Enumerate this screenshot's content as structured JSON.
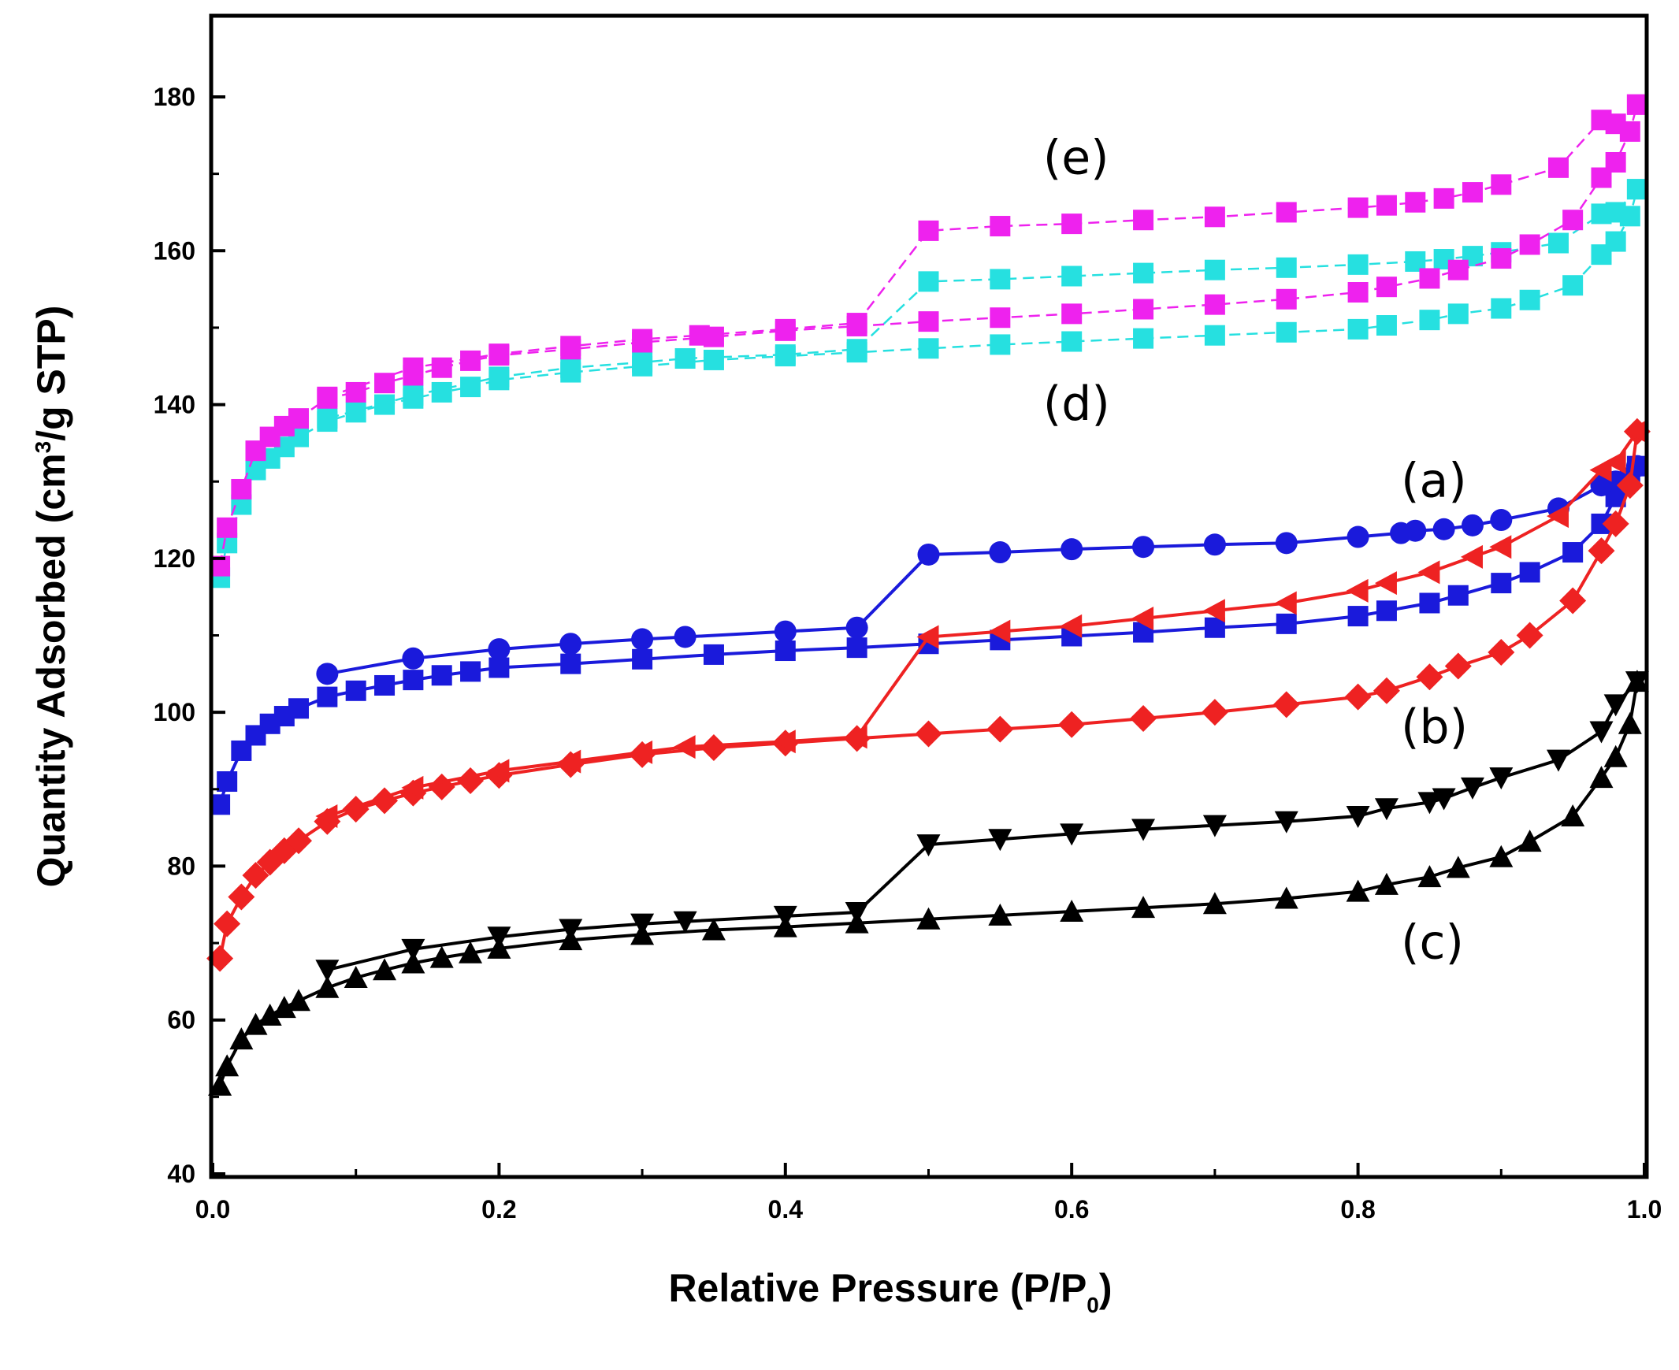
{
  "chart_data": {
    "type": "line",
    "title": "",
    "xlabel": "Relative Pressure (P/P",
    "xlabel_sub": "0",
    "xlabel_tail": ")",
    "ylabel": "Quantity Adsorbed (cm",
    "ylabel_sup": "3",
    "ylabel_tail": "/g STP)",
    "xlim": [
      0.0,
      1.0
    ],
    "ylim": [
      40,
      190
    ],
    "xticks": [
      "0.0",
      "0.2",
      "0.4",
      "0.6",
      "0.8",
      "1.0"
    ],
    "yticks": [
      "40",
      "60",
      "80",
      "100",
      "120",
      "140",
      "160",
      "180"
    ],
    "grid": false,
    "series": [
      {
        "name": "a-adsorption",
        "label": "(a)",
        "color": "#1a1adb",
        "marker": "square",
        "line": "solid",
        "x": [
          0.005,
          0.01,
          0.02,
          0.03,
          0.04,
          0.05,
          0.06,
          0.08,
          0.1,
          0.12,
          0.14,
          0.16,
          0.18,
          0.2,
          0.25,
          0.3,
          0.35,
          0.4,
          0.45,
          0.5,
          0.55,
          0.6,
          0.65,
          0.7,
          0.75,
          0.8,
          0.82,
          0.85,
          0.87,
          0.9,
          0.92,
          0.95,
          0.97,
          0.98,
          0.99,
          0.995
        ],
        "y": [
          88,
          91,
          95,
          97,
          98.5,
          99.5,
          100.5,
          102,
          102.8,
          103.5,
          104.2,
          104.8,
          105.3,
          105.8,
          106.3,
          106.9,
          107.5,
          108,
          108.4,
          108.9,
          109.4,
          109.9,
          110.4,
          111,
          111.5,
          112.5,
          113.2,
          114.2,
          115.2,
          116.8,
          118.2,
          120.8,
          124.5,
          128,
          130.5,
          132
        ]
      },
      {
        "name": "a-desorption",
        "label": "",
        "color": "#1a1adb",
        "marker": "circle",
        "line": "solid",
        "x": [
          0.995,
          0.98,
          0.97,
          0.94,
          0.9,
          0.88,
          0.86,
          0.84,
          0.83,
          0.8,
          0.75,
          0.7,
          0.65,
          0.6,
          0.55,
          0.5,
          0.45,
          0.4,
          0.33,
          0.3,
          0.25,
          0.2,
          0.14,
          0.08
        ],
        "y": [
          132,
          130,
          129.5,
          126.5,
          125,
          124.3,
          123.8,
          123.6,
          123.3,
          122.8,
          122,
          121.8,
          121.5,
          121.2,
          120.8,
          120.5,
          111,
          110.5,
          109.8,
          109.5,
          108.9,
          108.2,
          107,
          105
        ]
      },
      {
        "name": "b-adsorption",
        "label": "(b)",
        "color": "#ee2222",
        "marker": "diamond",
        "line": "solid",
        "x": [
          0.005,
          0.01,
          0.02,
          0.03,
          0.04,
          0.05,
          0.06,
          0.08,
          0.1,
          0.12,
          0.14,
          0.16,
          0.18,
          0.2,
          0.25,
          0.3,
          0.35,
          0.4,
          0.45,
          0.5,
          0.55,
          0.6,
          0.65,
          0.7,
          0.75,
          0.8,
          0.82,
          0.85,
          0.87,
          0.9,
          0.92,
          0.95,
          0.97,
          0.98,
          0.99,
          0.995
        ],
        "y": [
          68,
          72.5,
          76,
          78.8,
          80.5,
          82,
          83.3,
          85.8,
          87.4,
          88.5,
          89.5,
          90.3,
          91.1,
          91.8,
          93.2,
          94.5,
          95.4,
          96,
          96.6,
          97.2,
          97.8,
          98.4,
          99.2,
          100,
          101,
          102,
          102.8,
          104.6,
          106,
          107.8,
          110,
          114.5,
          121,
          124.5,
          129.5,
          136.5
        ]
      },
      {
        "name": "b-desorption",
        "label": "",
        "color": "#ee2222",
        "marker": "triangle-left",
        "line": "solid",
        "x": [
          0.995,
          0.98,
          0.97,
          0.94,
          0.9,
          0.88,
          0.85,
          0.82,
          0.8,
          0.75,
          0.7,
          0.65,
          0.6,
          0.55,
          0.5,
          0.45,
          0.4,
          0.33,
          0.3,
          0.25,
          0.2,
          0.14,
          0.08
        ],
        "y": [
          136.5,
          132.5,
          131.5,
          125.5,
          121.5,
          120.2,
          118.2,
          116.8,
          115.8,
          114.2,
          113.2,
          112.2,
          111.2,
          110.5,
          109.8,
          96.8,
          96.2,
          95.5,
          94.8,
          93.6,
          92.4,
          90.2,
          86.5
        ]
      },
      {
        "name": "c-adsorption",
        "label": "(c)",
        "color": "#000000",
        "marker": "triangle-up",
        "line": "solid",
        "x": [
          0.005,
          0.01,
          0.02,
          0.03,
          0.04,
          0.05,
          0.06,
          0.08,
          0.1,
          0.12,
          0.14,
          0.16,
          0.18,
          0.2,
          0.25,
          0.3,
          0.35,
          0.4,
          0.45,
          0.5,
          0.55,
          0.6,
          0.65,
          0.7,
          0.75,
          0.8,
          0.82,
          0.85,
          0.87,
          0.9,
          0.92,
          0.95,
          0.97,
          0.98,
          0.99,
          0.995
        ],
        "y": [
          51.5,
          54,
          57.5,
          59.4,
          60.6,
          61.6,
          62.5,
          64.2,
          65.5,
          66.5,
          67.4,
          68.1,
          68.7,
          69.3,
          70.4,
          71.1,
          71.7,
          72.1,
          72.6,
          73.1,
          73.6,
          74.1,
          74.6,
          75.1,
          75.8,
          76.7,
          77.6,
          78.6,
          79.8,
          81.2,
          83.2,
          86.5,
          91.5,
          94.2,
          98.5,
          104
        ]
      },
      {
        "name": "c-desorption",
        "label": "",
        "color": "#000000",
        "marker": "triangle-down",
        "line": "solid",
        "x": [
          0.995,
          0.98,
          0.97,
          0.94,
          0.9,
          0.88,
          0.86,
          0.85,
          0.82,
          0.8,
          0.75,
          0.7,
          0.65,
          0.6,
          0.55,
          0.5,
          0.45,
          0.4,
          0.33,
          0.3,
          0.25,
          0.2,
          0.14,
          0.08
        ],
        "y": [
          104,
          101,
          97.5,
          93.8,
          91.5,
          90.2,
          88.8,
          88.3,
          87.5,
          86.5,
          85.8,
          85.3,
          84.8,
          84.2,
          83.5,
          82.8,
          74,
          73.5,
          72.8,
          72.5,
          71.8,
          70.8,
          69.2,
          66.5
        ]
      },
      {
        "name": "d-adsorption",
        "label": "(d)",
        "color": "#26e0e0",
        "marker": "square",
        "line": "dashed",
        "x": [
          0.005,
          0.01,
          0.02,
          0.03,
          0.04,
          0.05,
          0.06,
          0.08,
          0.1,
          0.12,
          0.14,
          0.16,
          0.18,
          0.2,
          0.25,
          0.3,
          0.35,
          0.4,
          0.45,
          0.5,
          0.55,
          0.6,
          0.65,
          0.7,
          0.75,
          0.8,
          0.82,
          0.85,
          0.87,
          0.9,
          0.92,
          0.95,
          0.97,
          0.98,
          0.99,
          0.995
        ],
        "y": [
          117.5,
          122,
          127,
          131.5,
          133,
          134.5,
          135.8,
          137.8,
          139,
          140,
          140.8,
          141.6,
          142.3,
          143.2,
          144.2,
          145,
          145.8,
          146.3,
          146.8,
          147.3,
          147.8,
          148.2,
          148.6,
          149,
          149.4,
          149.8,
          150.3,
          151,
          151.8,
          152.5,
          153.6,
          155.5,
          159.5,
          161.2,
          164.5,
          168
        ]
      },
      {
        "name": "d-desorption",
        "label": "",
        "color": "#26e0e0",
        "marker": "square",
        "line": "dashed",
        "x": [
          0.995,
          0.98,
          0.97,
          0.94,
          0.9,
          0.88,
          0.86,
          0.84,
          0.8,
          0.75,
          0.7,
          0.65,
          0.6,
          0.55,
          0.5,
          0.45,
          0.4,
          0.33,
          0.3,
          0.25,
          0.2,
          0.14,
          0.08
        ],
        "y": [
          168,
          165,
          164.8,
          161,
          159.8,
          159.3,
          158.9,
          158.6,
          158.2,
          157.8,
          157.5,
          157.1,
          156.7,
          156.3,
          156,
          147.2,
          146.5,
          146,
          145.5,
          144.8,
          143.6,
          141.2,
          138.2
        ]
      },
      {
        "name": "e-adsorption",
        "label": "(e)",
        "color": "#ee22ee",
        "marker": "square",
        "line": "dashed",
        "x": [
          0.005,
          0.01,
          0.02,
          0.03,
          0.04,
          0.05,
          0.06,
          0.08,
          0.1,
          0.12,
          0.14,
          0.16,
          0.18,
          0.2,
          0.25,
          0.3,
          0.35,
          0.4,
          0.45,
          0.5,
          0.55,
          0.6,
          0.65,
          0.7,
          0.75,
          0.8,
          0.82,
          0.85,
          0.87,
          0.9,
          0.92,
          0.95,
          0.97,
          0.98,
          0.99,
          0.995
        ],
        "y": [
          119,
          124,
          129,
          134,
          135.8,
          137.2,
          138.2,
          140.8,
          141.6,
          142.8,
          143.8,
          144.8,
          145.7,
          146.4,
          147.2,
          148.1,
          148.8,
          149.6,
          150.2,
          150.8,
          151.3,
          151.8,
          152.4,
          153,
          153.7,
          154.6,
          155.3,
          156.4,
          157.5,
          159,
          160.8,
          164,
          169.5,
          171.5,
          175.5,
          179
        ]
      },
      {
        "name": "e-desorption",
        "label": "",
        "color": "#ee22ee",
        "marker": "square",
        "line": "dashed",
        "x": [
          0.995,
          0.98,
          0.97,
          0.94,
          0.9,
          0.88,
          0.86,
          0.84,
          0.82,
          0.8,
          0.75,
          0.7,
          0.65,
          0.6,
          0.55,
          0.5,
          0.45,
          0.4,
          0.34,
          0.3,
          0.25,
          0.2,
          0.14,
          0.08
        ],
        "y": [
          179,
          176.5,
          177,
          170.8,
          168.6,
          167.6,
          166.8,
          166.3,
          165.9,
          165.6,
          165,
          164.4,
          164,
          163.5,
          163.2,
          162.6,
          150.6,
          149.8,
          149,
          148.5,
          147.6,
          146.6,
          144.8,
          141
        ]
      }
    ],
    "annotations": [
      {
        "text": "(e)",
        "x": 0.58,
        "y": 170
      },
      {
        "text": "(d)",
        "x": 0.58,
        "y": 138
      },
      {
        "text": "(a)",
        "x": 0.83,
        "y": 128
      },
      {
        "text": "(b)",
        "x": 0.83,
        "y": 96
      },
      {
        "text": "(c)",
        "x": 0.83,
        "y": 68
      }
    ]
  }
}
